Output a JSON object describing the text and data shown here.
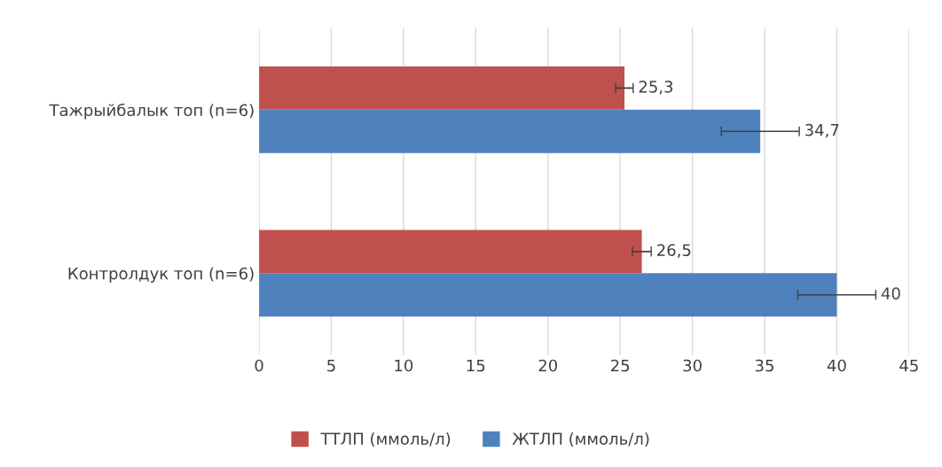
{
  "chart_data": {
    "type": "bar",
    "orientation": "horizontal",
    "categories": [
      "Тажрыйбалык топ (n=6)",
      "Контролдук топ (n=6)"
    ],
    "series": [
      {
        "name": "ТТЛП (ммоль/л)",
        "color": "#c0504d",
        "values": [
          25.3,
          26.5
        ],
        "errors": [
          0.6,
          0.65
        ],
        "value_labels": [
          "25,3",
          "26,5"
        ]
      },
      {
        "name": "ЖТЛП (ммоль/л)",
        "color": "#4f81bd",
        "values": [
          34.7,
          40
        ],
        "errors": [
          2.7,
          2.7
        ],
        "value_labels": [
          "34,7",
          "40"
        ]
      }
    ],
    "xlim": [
      0,
      45
    ],
    "xticks": [
      0,
      5,
      10,
      15,
      20,
      25,
      30,
      35,
      40,
      45
    ],
    "grid": "x",
    "legend": "bottom"
  }
}
